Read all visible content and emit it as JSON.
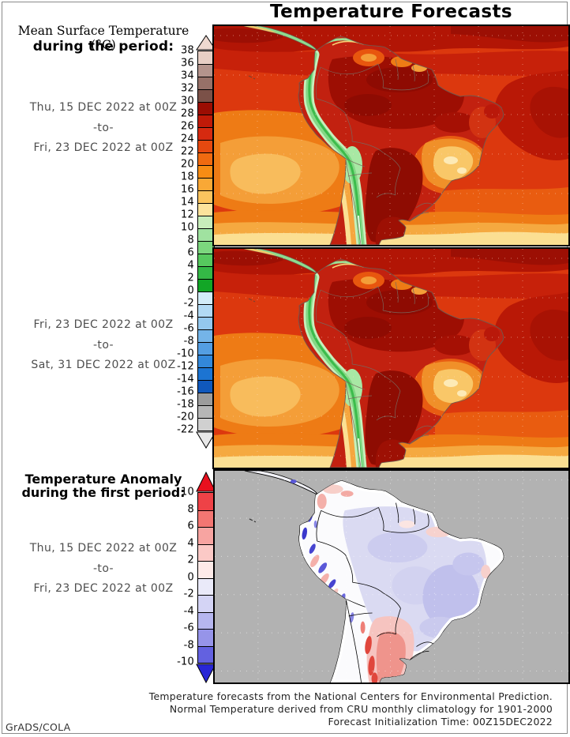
{
  "title": "Temperature Forecasts",
  "watermark": "GrADS/COLA",
  "panel_left": {
    "surface_heading_serif": "Mean Surface Temperature (°C)",
    "surface_heading_bold": "during the period:",
    "period1": {
      "from": "Thu, 15 DEC 2022 at 00Z",
      "sep": "-to-",
      "to": "Fri, 23 DEC 2022 at 00Z"
    },
    "period2": {
      "from": "Fri, 23 DEC 2022 at 00Z",
      "sep": "-to-",
      "to": "Sat, 31 DEC 2022 at 00Z"
    },
    "anomaly_heading_line1": "Temperature Anomaly",
    "anomaly_heading_line2": "during the first period:",
    "period3": {
      "from": "Thu, 15 DEC 2022 at 00Z",
      "sep": "-to-",
      "to": "Fri, 23 DEC 2022 at 00Z"
    }
  },
  "colorbars": {
    "temperature": {
      "units": "°C",
      "ticks": [
        38,
        36,
        34,
        32,
        30,
        28,
        26,
        24,
        22,
        20,
        18,
        16,
        14,
        12,
        10,
        8,
        6,
        4,
        2,
        0,
        -2,
        -4,
        -6,
        -8,
        -10,
        -12,
        -14,
        -16,
        -18,
        -20,
        -22
      ],
      "band_colors": [
        "#e7cfc5",
        "#b4948c",
        "#977168",
        "#7b5148",
        "#9b0d03",
        "#c01a08",
        "#d62a10",
        "#e6490f",
        "#f06a10",
        "#f78c14",
        "#f9a836",
        "#fbc45e",
        "#fce29c",
        "#c8ecba",
        "#a0e2a0",
        "#7cd67e",
        "#56c85e",
        "#34b846",
        "#12a626",
        "#d2ecf8",
        "#b2daf4",
        "#94c8ee",
        "#74b4e8",
        "#549ee2",
        "#3388da",
        "#1c74d2",
        "#1058bc",
        "#9c9c9c",
        "#b6b6b6",
        "#d0d0d0"
      ],
      "over_color": "#efd9d0",
      "under_color": "#e8e8e8"
    },
    "anomaly": {
      "units": "°C",
      "ticks": [
        10,
        8,
        6,
        4,
        2,
        0,
        -2,
        -4,
        -6,
        -8,
        -10
      ],
      "band_colors": [
        "#ee4247",
        "#f37672",
        "#f7a4a1",
        "#fbc9c6",
        "#fdeae8",
        "#eaeaf9",
        "#d4d4f5",
        "#b6b6ef",
        "#9694e9",
        "#6361e0"
      ],
      "over_color": "#e8101e",
      "under_color": "#2826d6"
    }
  },
  "footer": {
    "line1": "Temperature forecasts from the National Centers for Environmental Prediction.",
    "line2": "Normal Temperature derived from CRU monthly climatology for 1901-2000",
    "line3": "Forecast Initialization Time: 00Z15DEC2022"
  },
  "chart_data": [
    {
      "type": "heatmap",
      "title": "Mean Surface Temperature (°C)",
      "region": "South America",
      "period": {
        "from": "Thu, 15 DEC 2022 at 00Z",
        "to": "Fri, 23 DEC 2022 at 00Z"
      },
      "units": "°C",
      "scale_range": [
        -22,
        38
      ],
      "scale_step": 2,
      "legend_position": "left",
      "grid": "dotted lat/lon lines",
      "reading": "Amazon basin, Gran Chaco and NE Brazil 26-32 (dark red); Andes cordillera 0-12 (green) with 14-18 fringe; SE Brazil highlands 14-20 (amber/yellow); Caribbean and tropical Atlantic 24-28; SE Pacific 18-22 (orange); southern ocean edge 12-16 (pale yellow)"
    },
    {
      "type": "heatmap",
      "title": "Mean Surface Temperature (°C)",
      "region": "South America",
      "period": {
        "from": "Fri, 23 DEC 2022 at 00Z",
        "to": "Sat, 31 DEC 2022 at 00Z"
      },
      "units": "°C",
      "scale_range": [
        -22,
        38
      ],
      "scale_step": 2,
      "legend_position": "left",
      "grid": "dotted lat/lon lines",
      "reading": "Very similar pattern to first period: 26-32 over Amazon and interior Brazil/Chaco, green 0-12 Andes strip, 14-20 SE Brazil highlands, orange 18-24 oceans grading to pale yellow 12-16 in the far south"
    },
    {
      "type": "heatmap",
      "title": "Temperature Anomaly",
      "region": "South America (land only, gray ocean mask)",
      "period": {
        "from": "Thu, 15 DEC 2022 at 00Z",
        "to": "Fri, 23 DEC 2022 at 00Z"
      },
      "units": "°C",
      "scale_range": [
        -10,
        10
      ],
      "scale_step": 2,
      "legend_position": "left",
      "grid": "dotted lat/lon lines",
      "reading": "-2 to -6 (lavender/blue) across most of Brazil and the Amazon; isolated -6 to -10 (blue) cells along the Andes from Colombia to Chile; +2 to +6 (pink/red) over central Argentina, Patagonia and the southern Andes foothills; near 0 (white) along most coasts"
    }
  ]
}
